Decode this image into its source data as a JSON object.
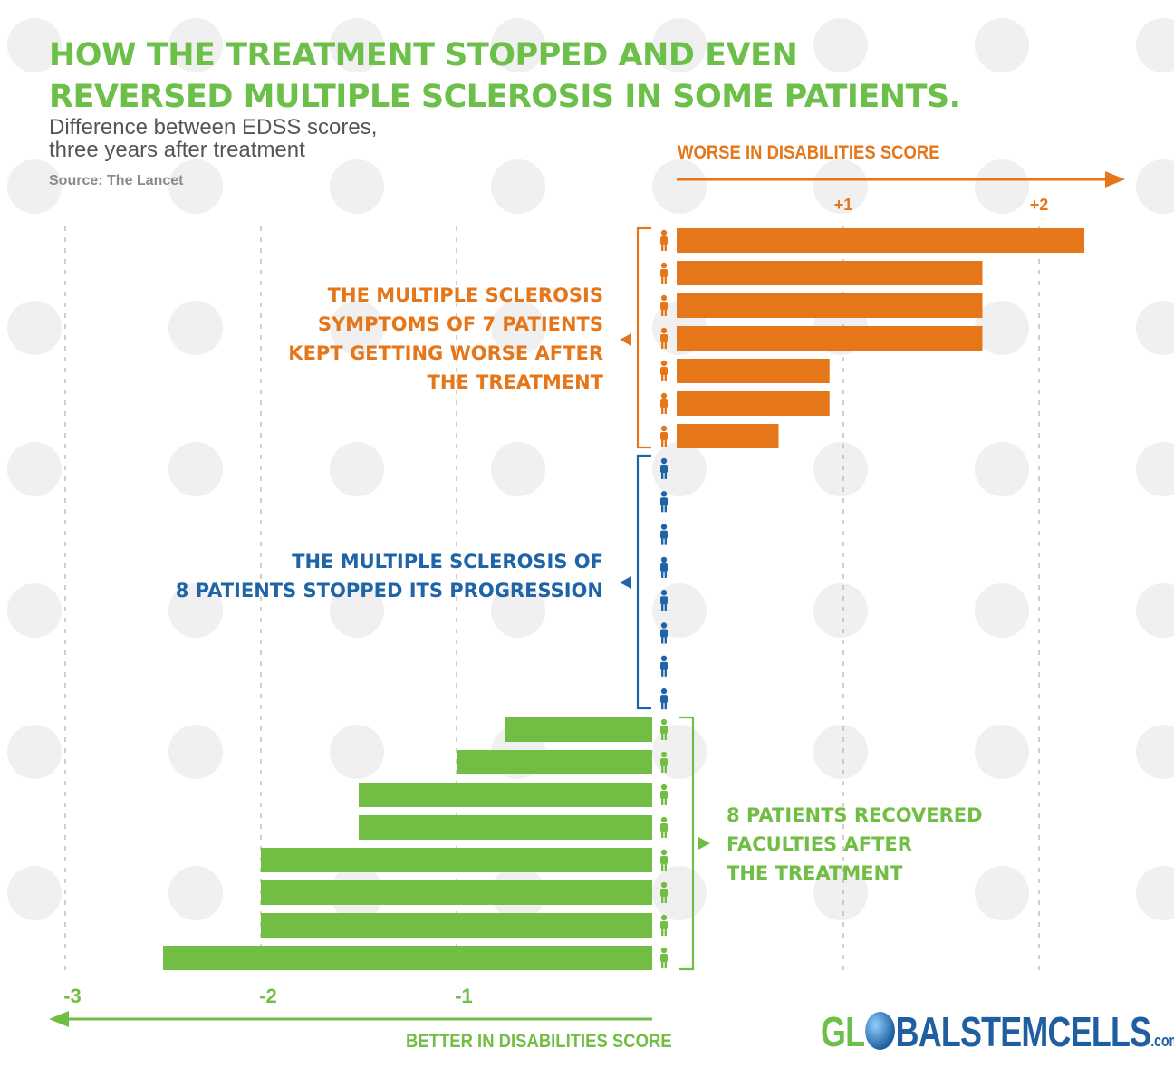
{
  "header": {
    "title_line1": "HOW THE TREATMENT STOPPED AND EVEN",
    "title_line2": "REVERSED MULTIPLE SCLEROSIS IN SOME PATIENTS.",
    "subtitle_line1": "Difference between EDSS scores,",
    "subtitle_line2": "three years after treatment",
    "source": "Source: The Lancet"
  },
  "axis": {
    "worse_label": "WORSE IN DISABILITIES SCORE",
    "better_label": "BETTER IN DISABILITIES SCORE"
  },
  "groups": {
    "orange": [
      "THE MULTIPLE SCLEROSIS",
      "SYMPTOMS OF 7 PATIENTS",
      "KEPT GETTING WORSE AFTER",
      "THE TREATMENT"
    ],
    "blue": [
      "THE MULTIPLE SCLEROSIS OF",
      "8 PATIENTS STOPPED ITS PROGRESSION"
    ],
    "green": [
      "8 PATIENTS RECOVERED",
      "FACULTIES AFTER",
      "THE TREATMENT"
    ]
  },
  "logo": {
    "part1": "GL",
    "part2": "BALSTEMCELLS",
    "part3": ".com"
  },
  "colors": {
    "orange": "#e5761a",
    "blue": "#1f64a7",
    "green": "#72be44",
    "grid": "#b5b5b5",
    "title": "#6cc04a"
  },
  "chart_data": {
    "type": "bar",
    "orientation": "horizontal",
    "title": "HOW THE TREATMENT STOPPED AND EVEN REVERSED MULTIPLE SCLEROSIS IN SOME PATIENTS.",
    "subtitle": "Difference between EDSS scores, three years after treatment",
    "xlim": [
      -3,
      2
    ],
    "ticks_top": [
      "+1",
      "+2"
    ],
    "ticks_bottom": [
      "-3",
      "-2",
      "-1"
    ],
    "grid": true,
    "series": [
      {
        "name": "THE MULTIPLE SCLEROSIS SYMPTOMS OF 7 PATIENTS KEPT GETTING WORSE AFTER THE TREATMENT",
        "color": "#e5761a",
        "values": [
          2.0,
          1.5,
          1.5,
          1.5,
          0.75,
          0.75,
          0.5
        ]
      },
      {
        "name": "THE MULTIPLE SCLEROSIS OF 8 PATIENTS STOPPED ITS PROGRESSION",
        "color": "#1f64a7",
        "values": [
          0,
          0,
          0,
          0,
          0,
          0,
          0,
          0
        ]
      },
      {
        "name": "8 PATIENTS RECOVERED FACULTIES AFTER THE TREATMENT",
        "color": "#72be44",
        "values": [
          -0.75,
          -1,
          -1.5,
          -1.5,
          -2,
          -2,
          -2,
          -2.5
        ]
      }
    ]
  }
}
